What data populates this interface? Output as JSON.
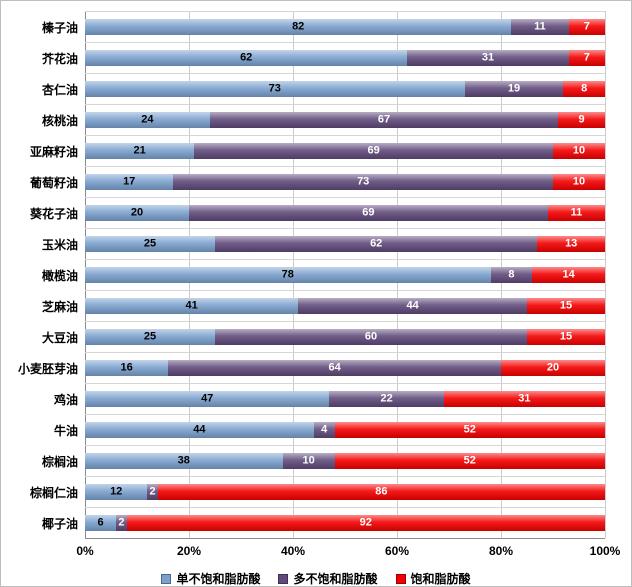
{
  "chart_data": {
    "type": "bar",
    "orientation": "horizontal",
    "stacked": true,
    "title": "",
    "xlabel": "",
    "ylabel": "",
    "xlim": [
      0,
      100
    ],
    "x_ticks": [
      "0%",
      "20%",
      "40%",
      "60%",
      "80%",
      "100%"
    ],
    "grid": true,
    "legend_position": "bottom",
    "categories": [
      "榛子油",
      "芥花油",
      "杏仁油",
      "核桃油",
      "亚麻籽油",
      "葡萄籽油",
      "葵花子油",
      "玉米油",
      "橄榄油",
      "芝麻油",
      "大豆油",
      "小麦胚芽油",
      "鸡油",
      "牛油",
      "棕榈油",
      "棕榈仁油",
      "椰子油"
    ],
    "series": [
      {
        "key": "monounsaturated",
        "name": "单不饱和脂肪酸",
        "color": "#7ba0cd",
        "value_color": "#000000",
        "values": [
          82,
          62,
          73,
          24,
          21,
          17,
          20,
          25,
          78,
          41,
          25,
          16,
          47,
          44,
          38,
          12,
          6
        ]
      },
      {
        "key": "polyunsaturated",
        "name": "多不饱和脂肪酸",
        "color": "#604a7b",
        "value_color": "#ffffff",
        "values": [
          11,
          31,
          19,
          67,
          69,
          73,
          69,
          62,
          8,
          44,
          60,
          64,
          22,
          4,
          10,
          2,
          2
        ]
      },
      {
        "key": "saturated",
        "name": "饱和脂肪酸",
        "color": "#f40000",
        "value_color": "#ffffff",
        "values": [
          7,
          7,
          8,
          9,
          10,
          10,
          11,
          13,
          14,
          15,
          15,
          20,
          31,
          52,
          52,
          86,
          92
        ]
      }
    ]
  }
}
